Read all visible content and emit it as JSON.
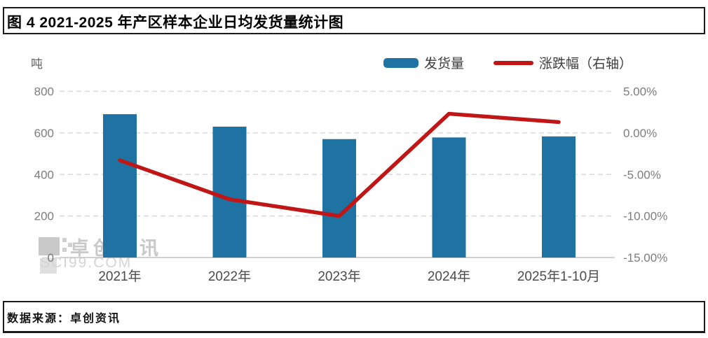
{
  "header": {
    "figure_title": "图 4 2021-2025 年产区样本企业日均发货量统计图"
  },
  "footer": {
    "source": "数据来源：卓创资讯"
  },
  "watermark": {
    "brand": "卓创资讯",
    "site": "SCI99.COM"
  },
  "colors": {
    "bar": "#1e73a2",
    "line": "#c01616",
    "grid": "#d9d9d9",
    "baseline": "#c2c2c2",
    "axis_text": "#7d7d7d",
    "category_text": "#4b4b4b",
    "rule": "#1b1b1b"
  },
  "chart_data": {
    "type": "bar+line",
    "title": "图 4 2021-2025 年产区样本企业日均发货量统计图",
    "categories": [
      "2021年",
      "2022年",
      "2023年",
      "2024年",
      "2025年1-10月"
    ],
    "series": [
      {
        "name": "发货量",
        "type": "bar",
        "axis": "left",
        "unit": "吨",
        "values": [
          690,
          630,
          570,
          578,
          583
        ]
      },
      {
        "name": "涨跌幅（右轴）",
        "type": "line",
        "axis": "right",
        "unit": "%",
        "values_percent": [
          -3.3,
          -8.0,
          -10.0,
          2.3,
          1.3
        ]
      }
    ],
    "left_axis": {
      "title": "吨",
      "range": [
        0,
        800
      ],
      "tick_values": [
        0,
        200,
        400,
        600,
        800
      ],
      "tick_labels": [
        "0",
        "200",
        "400",
        "600",
        "800"
      ]
    },
    "right_axis": {
      "range": [
        -15,
        5
      ],
      "tick_values": [
        -15,
        -10,
        -5,
        0,
        5
      ],
      "tick_labels": [
        "-15.00%",
        "-10.00%",
        "-5.00%",
        "0.00%",
        "5.00%"
      ]
    },
    "legend": [
      {
        "label": "发货量",
        "swatch": "bar",
        "color": "#1e73a2"
      },
      {
        "label": "涨跌幅（右轴）",
        "swatch": "line",
        "color": "#c01616"
      }
    ],
    "grid": "horizontal dashed",
    "legend_position": "top-right"
  }
}
